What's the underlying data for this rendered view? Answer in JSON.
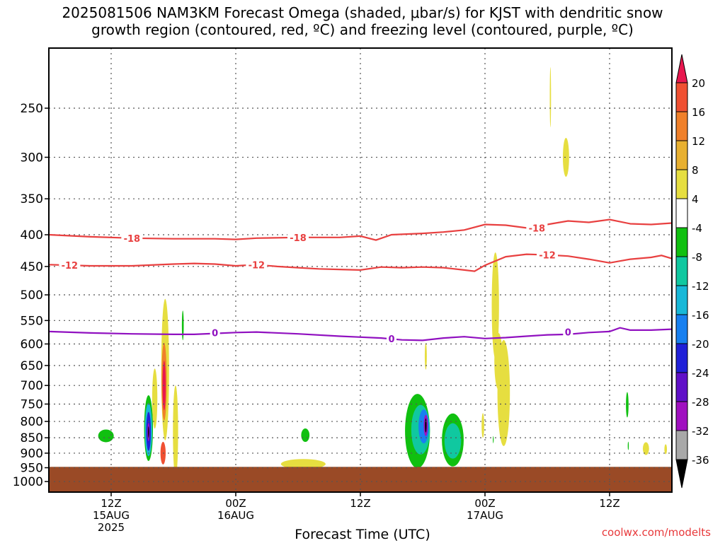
{
  "title_lines": [
    "2025081506 NAM3KM Forecast Omega (shaded, μbar/s) for KJST with dendritic snow",
    "growth region (contoured, red, ºC) and freezing level (contoured, purple, ºC)"
  ],
  "credit": "coolwx.com/modelts",
  "chart_data": {
    "type": "heatmap",
    "title": "2025081506 NAM3KM Forecast Omega (shaded, μbar/s) for KJST with dendritic snow growth region (contoured, red, ºC) and freezing level (contoured, purple, ºC)",
    "xlabel": "Forecast Time (UTC)",
    "ylabel": "",
    "x_unit": "hours from 2025-08-15 06Z",
    "xlim": [
      0,
      60
    ],
    "ylim": [
      1040,
      200
    ],
    "y_scale": "log",
    "grid": true,
    "x_ticks": [
      {
        "value": 6,
        "lines": [
          "12Z",
          "15AUG",
          "2025"
        ]
      },
      {
        "value": 18,
        "lines": [
          "00Z",
          "16AUG"
        ]
      },
      {
        "value": 30,
        "lines": [
          "12Z"
        ]
      },
      {
        "value": 42,
        "lines": [
          "00Z",
          "17AUG"
        ]
      },
      {
        "value": 54,
        "lines": [
          "12Z"
        ]
      }
    ],
    "y_ticks": [
      250,
      300,
      350,
      400,
      450,
      500,
      550,
      600,
      650,
      700,
      750,
      800,
      850,
      900,
      950,
      1000
    ],
    "surface_pressure": 947,
    "colorbar": {
      "labels": [
        "20",
        "16",
        "12",
        "8",
        "4",
        "-4",
        "-8",
        "-12",
        "-16",
        "-20",
        "-24",
        "-28",
        "-32",
        "-36"
      ],
      "colors": [
        "#e8174f",
        "#f05032",
        "#f0802a",
        "#e8b030",
        "#e6de40",
        "#ffffff",
        "#10c010",
        "#10c8a0",
        "#18b8d8",
        "#1880f0",
        "#2020d8",
        "#6010c8",
        "#a010c0",
        "#a8a8a8",
        "#000000"
      ]
    },
    "contours": [
      {
        "level": -18,
        "color": "#e84040",
        "points": [
          [
            0,
            400
          ],
          [
            4,
            403
          ],
          [
            8,
            405
          ],
          [
            12,
            406
          ],
          [
            16,
            406
          ],
          [
            18,
            407
          ],
          [
            20,
            405
          ],
          [
            24,
            404
          ],
          [
            28,
            404
          ],
          [
            30,
            402
          ],
          [
            31.5,
            408
          ],
          [
            33,
            400
          ],
          [
            36,
            398
          ],
          [
            38,
            396
          ],
          [
            40,
            393
          ],
          [
            42,
            385
          ],
          [
            44,
            386
          ],
          [
            46,
            390
          ],
          [
            48,
            385
          ],
          [
            50,
            380
          ],
          [
            52,
            382
          ],
          [
            54,
            378
          ],
          [
            56,
            384
          ],
          [
            58,
            385
          ],
          [
            60,
            383
          ]
        ],
        "labels": [
          [
            8,
            405
          ],
          [
            24,
            404
          ],
          [
            47,
            390
          ]
        ]
      },
      {
        "level": -12,
        "color": "#e84040",
        "points": [
          [
            0,
            447
          ],
          [
            4,
            449
          ],
          [
            8,
            449
          ],
          [
            12,
            446
          ],
          [
            14,
            445
          ],
          [
            16,
            446
          ],
          [
            18,
            449
          ],
          [
            20,
            447
          ],
          [
            22,
            450
          ],
          [
            24,
            452
          ],
          [
            26,
            454
          ],
          [
            28,
            455
          ],
          [
            30,
            456
          ],
          [
            32,
            451
          ],
          [
            34,
            452
          ],
          [
            36,
            451
          ],
          [
            38,
            452
          ],
          [
            40,
            456
          ],
          [
            41,
            458
          ],
          [
            42,
            448
          ],
          [
            44,
            434
          ],
          [
            46,
            430
          ],
          [
            48,
            431
          ],
          [
            50,
            433
          ],
          [
            52,
            438
          ],
          [
            54,
            444
          ],
          [
            56,
            438
          ],
          [
            58,
            435
          ],
          [
            59,
            432
          ],
          [
            60,
            437
          ]
        ],
        "labels": [
          [
            2,
            448
          ],
          [
            20,
            447
          ],
          [
            48,
            431
          ]
        ]
      },
      {
        "level": 0,
        "color": "#9010c0",
        "points": [
          [
            0,
            573
          ],
          [
            4,
            576
          ],
          [
            8,
            578
          ],
          [
            12,
            579
          ],
          [
            14,
            579
          ],
          [
            16,
            577
          ],
          [
            18,
            575
          ],
          [
            20,
            574
          ],
          [
            24,
            578
          ],
          [
            28,
            583
          ],
          [
            30,
            585
          ],
          [
            32,
            587
          ],
          [
            34,
            591
          ],
          [
            36,
            592
          ],
          [
            38,
            587
          ],
          [
            40,
            584
          ],
          [
            42,
            588
          ],
          [
            44,
            586
          ],
          [
            46,
            583
          ],
          [
            48,
            580
          ],
          [
            50,
            579
          ],
          [
            52,
            575
          ],
          [
            54,
            573
          ],
          [
            55,
            565
          ],
          [
            56,
            570
          ],
          [
            58,
            570
          ],
          [
            60,
            568
          ]
        ],
        "labels": [
          [
            16,
            575
          ],
          [
            33,
            588
          ],
          [
            50,
            574
          ]
        ]
      }
    ],
    "shaded": [
      {
        "omega": -8,
        "x": 5.5,
        "p": 844,
        "w": 1.5,
        "h": 18
      },
      {
        "omega": -8,
        "x": 9.6,
        "p": 820,
        "w": 0.85,
        "h": 93
      },
      {
        "omega": -16,
        "x": 9.6,
        "p": 825,
        "w": 0.7,
        "h": 75
      },
      {
        "omega": -24,
        "x": 9.6,
        "p": 830,
        "w": 0.45,
        "h": 55
      },
      {
        "omega": -32,
        "x": 9.6,
        "p": 832,
        "w": 0.22,
        "h": 26
      },
      {
        "omega": -36,
        "x": 9.6,
        "p": 832,
        "w": 0.1,
        "h": 16
      },
      {
        "omega": 4,
        "x": 10.2,
        "p": 735,
        "w": 0.5,
        "h": 85
      },
      {
        "omega": 4,
        "x": 11.2,
        "p": 660,
        "w": 0.75,
        "h": 200
      },
      {
        "omega": 12,
        "x": 11.1,
        "p": 690,
        "w": 0.5,
        "h": 110
      },
      {
        "omega": 20,
        "x": 11.1,
        "p": 700,
        "w": 0.3,
        "h": 70
      },
      {
        "omega": 4,
        "x": 12.2,
        "p": 830,
        "w": 0.5,
        "h": 130
      },
      {
        "omega": 16,
        "x": 11.0,
        "p": 900,
        "w": 0.5,
        "h": 32
      },
      {
        "omega": -8,
        "x": 12.9,
        "p": 560,
        "w": 0.18,
        "h": 42
      },
      {
        "omega": -8,
        "x": 24.7,
        "p": 842,
        "w": 0.8,
        "h": 19
      },
      {
        "omega": 4,
        "x": 24.5,
        "p": 937,
        "w": 4.3,
        "h": 14
      },
      {
        "omega": -8,
        "x": 35.5,
        "p": 829,
        "w": 2.4,
        "h": 105
      },
      {
        "omega": -12,
        "x": 35.8,
        "p": 825,
        "w": 1.8,
        "h": 70
      },
      {
        "omega": -20,
        "x": 36.1,
        "p": 815,
        "w": 1.0,
        "h": 48
      },
      {
        "omega": -32,
        "x": 36.3,
        "p": 812,
        "w": 0.4,
        "h": 30
      },
      {
        "omega": -36,
        "x": 36.3,
        "p": 812,
        "w": 0.15,
        "h": 20
      },
      {
        "omega": -8,
        "x": 38.9,
        "p": 857,
        "w": 2.1,
        "h": 75
      },
      {
        "omega": -12,
        "x": 38.9,
        "p": 860,
        "w": 1.6,
        "h": 50
      },
      {
        "omega": 4,
        "x": 36.3,
        "p": 628,
        "w": 0.2,
        "h": 38
      },
      {
        "omega": 4,
        "x": 41.8,
        "p": 812,
        "w": 0.25,
        "h": 35
      },
      {
        "omega": 4,
        "x": 43.0,
        "p": 520,
        "w": 0.7,
        "h": 150
      },
      {
        "omega": 4,
        "x": 43.8,
        "p": 720,
        "w": 1.2,
        "h": 150
      },
      {
        "omega": 4,
        "x": 43.3,
        "p": 640,
        "w": 0.8,
        "h": 80
      },
      {
        "omega": -8,
        "x": 42.8,
        "p": 856,
        "w": 0.08,
        "h": 10
      },
      {
        "omega": 4,
        "x": 48.3,
        "p": 240,
        "w": 0.12,
        "h": 85
      },
      {
        "omega": 4,
        "x": 49.8,
        "p": 300,
        "w": 0.6,
        "h": 55
      },
      {
        "omega": -8,
        "x": 55.7,
        "p": 752,
        "w": 0.25,
        "h": 36
      },
      {
        "omega": -8,
        "x": 55.8,
        "p": 876,
        "w": 0.1,
        "h": 12
      },
      {
        "omega": 4,
        "x": 57.5,
        "p": 885,
        "w": 0.6,
        "h": 18
      },
      {
        "omega": 4,
        "x": 59.4,
        "p": 887,
        "w": 0.25,
        "h": 14
      }
    ]
  }
}
